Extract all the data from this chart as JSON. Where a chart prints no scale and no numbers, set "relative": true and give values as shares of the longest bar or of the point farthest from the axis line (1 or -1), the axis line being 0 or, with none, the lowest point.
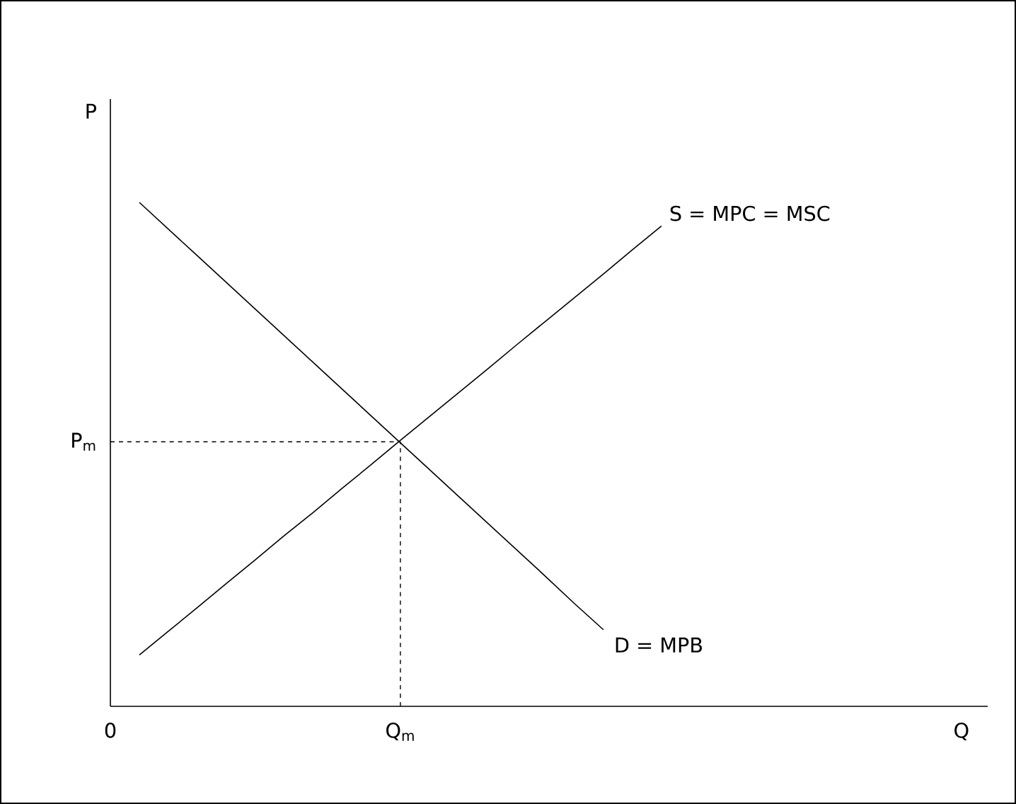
{
  "chart_data": {
    "type": "line",
    "relative": true,
    "xlabel": "Q",
    "ylabel": "P",
    "categories": [
      "0",
      null,
      null,
      null,
      null,
      null,
      null,
      null,
      null,
      null,
      "Q$_{m}$",
      null,
      null,
      null,
      null,
      null,
      null,
      null,
      null,
      null,
      null,
      null,
      null,
      null,
      null,
      null,
      null,
      null,
      null,
      null,
      null
    ],
    "series": [
      {
        "name": "D = MPB",
        "color": "#000000",
        "values": [
          null,
          1.0,
          0.947,
          0.894,
          0.841,
          0.788,
          0.735,
          0.682,
          0.629,
          0.576,
          0.523,
          0.47,
          0.417,
          0.364,
          0.311,
          0.258,
          0.204,
          0.152,
          null,
          null,
          null,
          null,
          null,
          null,
          null,
          null,
          null,
          null,
          null,
          null,
          null
        ]
      },
      {
        "name": "S = MPC = MSC",
        "color": "#000000",
        "values": [
          null,
          0.102,
          0.149,
          0.196,
          0.244,
          0.291,
          0.339,
          0.385,
          0.433,
          0.48,
          0.528,
          0.575,
          0.622,
          0.669,
          0.717,
          0.764,
          0.811,
          0.858,
          0.906,
          0.953,
          null,
          null,
          null,
          null,
          null,
          null,
          null,
          null,
          null,
          null,
          null
        ]
      }
    ],
    "ref_lines": [
      {
        "axis": "y",
        "value": 0.525,
        "label": "P$_{m}$",
        "line_style": "dashed"
      },
      {
        "axis": "x",
        "value": "Q$_{m}$",
        "line_style": "dashed"
      }
    ]
  }
}
